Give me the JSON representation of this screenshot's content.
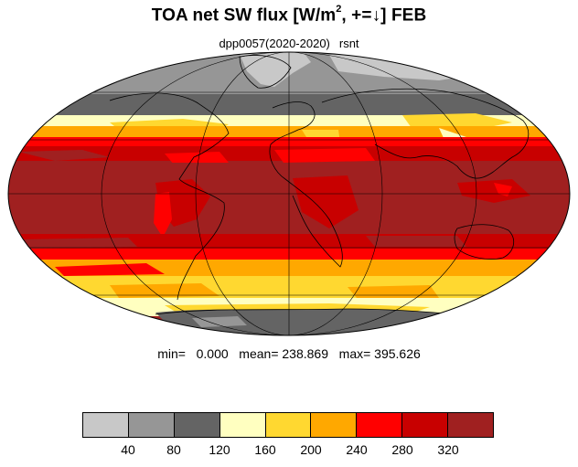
{
  "title": {
    "prefix": "TOA net SW flux [W/m",
    "superscript": "2",
    "suffix": ", +=↓]  FEB"
  },
  "subtitle": {
    "experiment": "dpp0057(2020-2020)",
    "variable": "rsnt"
  },
  "stats": {
    "text": "min=   0.000   mean= 238.869   max= 395.626"
  },
  "colorbar": {
    "colors": [
      "#c8c8c8",
      "#969696",
      "#646464",
      "#ffffc0",
      "#ffd830",
      "#ffa800",
      "#ff0000",
      "#c80000",
      "#a02020"
    ],
    "labels": [
      "40",
      "80",
      "120",
      "160",
      "200",
      "240",
      "280",
      "320"
    ]
  },
  "map": {
    "projection": "Mollweide",
    "ocean_fill": "#a02020",
    "zones": [
      {
        "name": "north-polar-gray",
        "color": "#969696"
      },
      {
        "name": "arctic-light-gray",
        "color": "#c8c8c8"
      },
      {
        "name": "north-dark-gray",
        "color": "#646464"
      },
      {
        "name": "north-pale-yellow",
        "color": "#ffffc0"
      },
      {
        "name": "north-orange",
        "color": "#ffa800"
      },
      {
        "name": "north-red",
        "color": "#ff0000"
      },
      {
        "name": "north-dark-red",
        "color": "#c80000"
      },
      {
        "name": "tropical-brown-red",
        "color": "#a02020"
      },
      {
        "name": "south-dark-red",
        "color": "#c80000"
      },
      {
        "name": "south-red",
        "color": "#ff0000"
      },
      {
        "name": "south-orange",
        "color": "#ffa800"
      },
      {
        "name": "south-yellow",
        "color": "#ffd830"
      },
      {
        "name": "antarctic-gray",
        "color": "#646464"
      }
    ]
  }
}
